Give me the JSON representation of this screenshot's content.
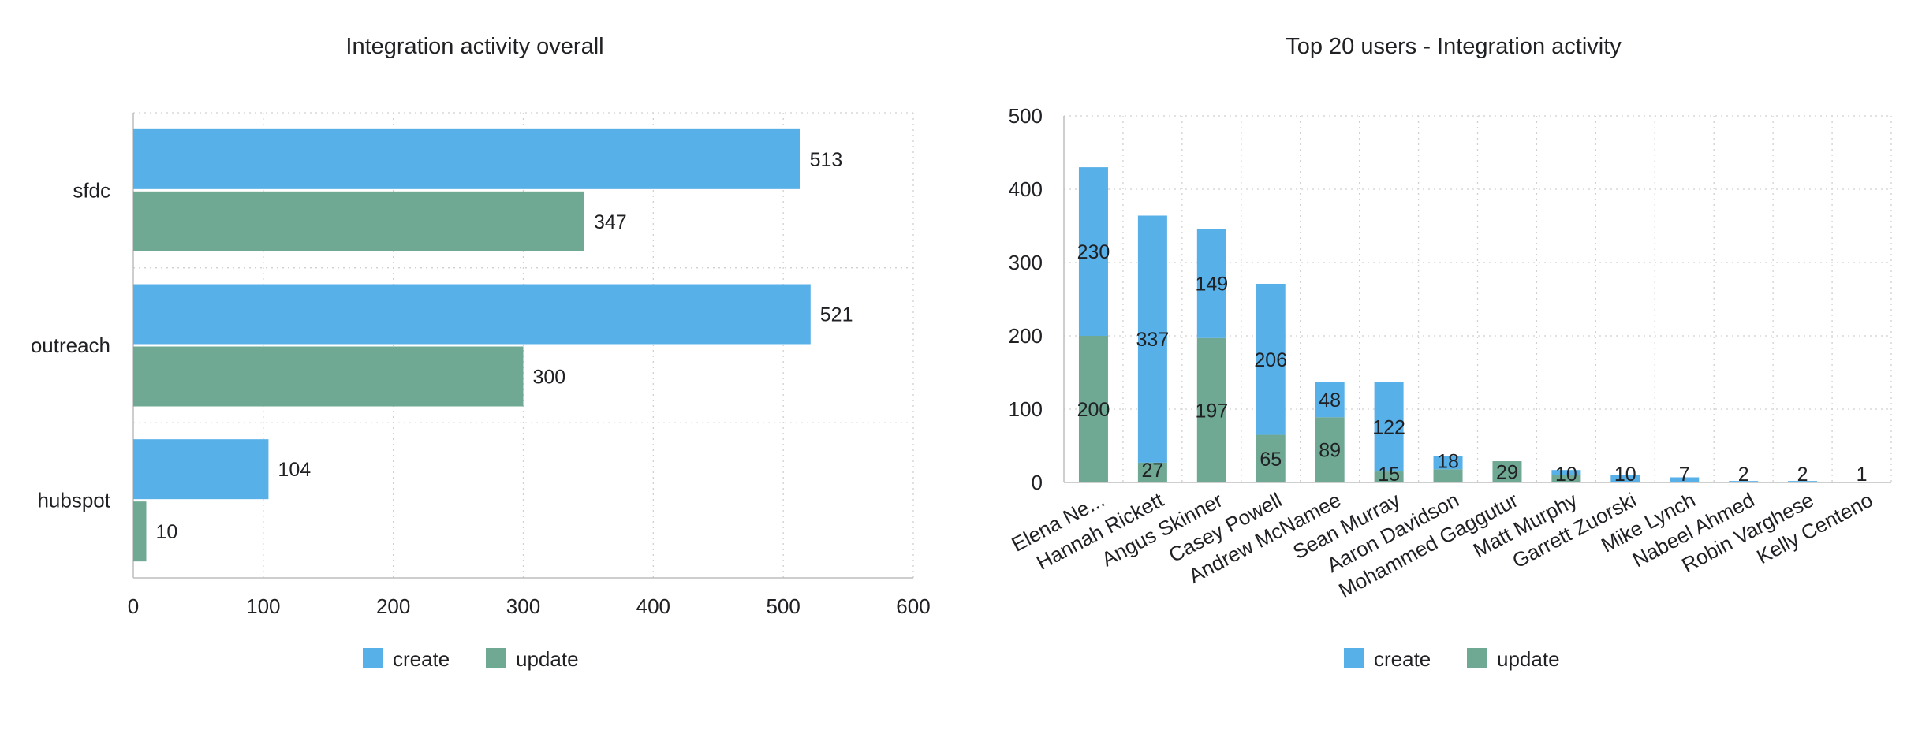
{
  "colors": {
    "create": "#58b0e8",
    "update": "#6fa893"
  },
  "chart_data": [
    {
      "type": "bar",
      "orientation": "horizontal",
      "title": "Integration activity overall",
      "categories": [
        "sfdc",
        "outreach",
        "hubspot"
      ],
      "series": [
        {
          "name": "create",
          "values": [
            513,
            521,
            104
          ]
        },
        {
          "name": "update",
          "values": [
            347,
            300,
            10
          ]
        }
      ],
      "xlim": [
        0,
        600
      ],
      "x_ticks": [
        "0",
        "100",
        "200",
        "300",
        "400",
        "500",
        "600"
      ],
      "grid": true,
      "legend": "bottom"
    },
    {
      "type": "bar",
      "stacked": true,
      "title": "Top 20 users - Integration activity",
      "categories": [
        "Elena Ne...",
        "Hannah Rickett",
        "Angus Skinner",
        "Casey Powell",
        "Andrew McNamee",
        "Sean Murray",
        "Aaron Davidson",
        "Mohammed Gaggutur",
        "Matt Murphy",
        "Garrett Zuorski",
        "Mike Lynch",
        "Nabeel Ahmed",
        "Robin Varghese",
        "Kelly Centeno"
      ],
      "series": [
        {
          "name": "update",
          "values": [
            200,
            27,
            197,
            65,
            89,
            15,
            18,
            29,
            10,
            0,
            0,
            0,
            0,
            0
          ]
        },
        {
          "name": "create",
          "values": [
            230,
            337,
            149,
            206,
            48,
            122,
            18,
            0,
            7,
            10,
            7,
            2,
            2,
            1
          ]
        }
      ],
      "labels": [
        [
          "200",
          "230"
        ],
        [
          "27",
          "337"
        ],
        [
          "197",
          "149"
        ],
        [
          "65",
          "206"
        ],
        [
          "89",
          "48"
        ],
        [
          "15",
          "122"
        ],
        [
          "",
          "18"
        ],
        [
          "29",
          ""
        ],
        [
          "10",
          ""
        ],
        [
          "",
          "10"
        ],
        [
          "",
          "7"
        ],
        [
          "",
          "2"
        ],
        [
          "",
          "2"
        ],
        [
          "",
          "1"
        ]
      ],
      "ylim": [
        0,
        500
      ],
      "y_ticks": [
        "0",
        "100",
        "200",
        "300",
        "400",
        "500"
      ],
      "grid": true,
      "legend": "bottom"
    }
  ]
}
